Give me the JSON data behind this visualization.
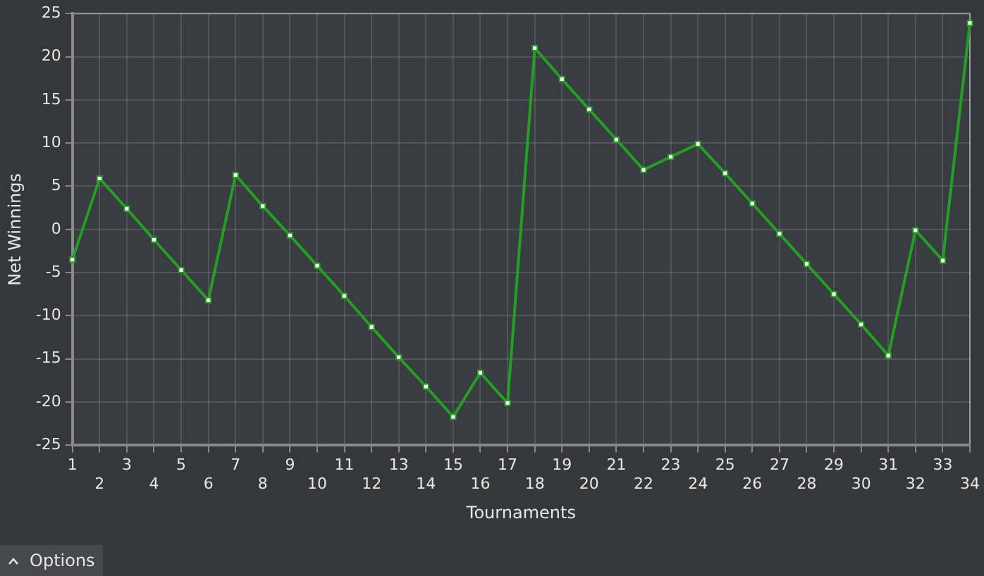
{
  "chart_data": {
    "type": "line",
    "xlabel": "Tournaments",
    "ylabel": "Net Winnings",
    "categories": [
      "1",
      "2",
      "3",
      "4",
      "5",
      "6",
      "7",
      "8",
      "9",
      "10",
      "11",
      "12",
      "13",
      "14",
      "15",
      "16",
      "17",
      "18",
      "19",
      "20",
      "21",
      "22",
      "23",
      "24",
      "25",
      "26",
      "27",
      "28",
      "29",
      "30",
      "31",
      "32",
      "33",
      "34"
    ],
    "series": [
      {
        "color": "#22a022",
        "values": [
          -3.5,
          5.9,
          2.4,
          -1.2,
          -4.7,
          -8.2,
          6.3,
          2.7,
          -0.7,
          -4.2,
          -7.7,
          -11.3,
          -14.8,
          -18.2,
          -21.7,
          -16.6,
          -20.1,
          21.0,
          17.4,
          13.9,
          10.4,
          6.9,
          8.4,
          9.9,
          6.5,
          3.0,
          -0.5,
          -4.0,
          -7.5,
          -11.0,
          -14.6,
          -0.1,
          -3.6,
          23.9
        ]
      }
    ],
    "ylim": [
      -25,
      25
    ],
    "yticks": [
      -25,
      -20,
      -15,
      -10,
      -5,
      0,
      5,
      10,
      15,
      20,
      25
    ],
    "grid": true,
    "legend": false,
    "marker": "square",
    "line_style": "solid",
    "annotations": [
      "Options"
    ]
  }
}
